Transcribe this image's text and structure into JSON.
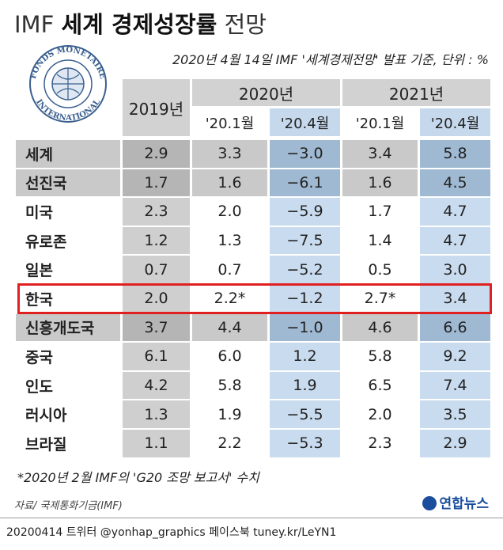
{
  "header": {
    "title_parts": [
      "IMF",
      "세계 경제성장률",
      "전망"
    ],
    "subtitle": "2020년 4월 14일 IMF '세계경제전망' 발표 기준, 단위 : %"
  },
  "logo": {
    "top_text": "FONDS MONETAIRE",
    "bottom_text": "INTERNATIONAL"
  },
  "table": {
    "years": [
      "2019년",
      "2020년",
      "2021년"
    ],
    "subheaders": [
      "'20.1월",
      "'20.4월",
      "'20.1월",
      "'20.4월"
    ],
    "rows": [
      [
        "세계",
        "2.9",
        "3.3",
        "−3.0",
        "3.4",
        "5.8"
      ],
      [
        "선진국",
        "1.7",
        "1.6",
        "−6.1",
        "1.6",
        "4.5"
      ],
      [
        "미국",
        "2.3",
        "2.0",
        "−5.9",
        "1.7",
        "4.7"
      ],
      [
        "유로존",
        "1.2",
        "1.3",
        "−7.5",
        "1.4",
        "4.7"
      ],
      [
        "일본",
        "0.7",
        "0.7",
        "−5.2",
        "0.5",
        "3.0"
      ],
      [
        "한국",
        "2.0",
        "2.2*",
        "−1.2",
        "2.7*",
        "3.4"
      ],
      [
        "신흥개도국",
        "3.7",
        "4.4",
        "−1.0",
        "4.6",
        "6.6"
      ],
      [
        "중국",
        "6.1",
        "6.0",
        "1.2",
        "5.8",
        "9.2"
      ],
      [
        "인도",
        "4.2",
        "5.8",
        "1.9",
        "6.5",
        "7.4"
      ],
      [
        "러시아",
        "1.3",
        "1.9",
        "−5.5",
        "2.0",
        "3.5"
      ],
      [
        "브라질",
        "1.1",
        "2.2",
        "−5.3",
        "2.3",
        "2.9"
      ]
    ]
  },
  "footnote": "*2020년 2월 IMF의 'G20 조망 보고서' 수치",
  "source": "자료/ 국제통화기금(IMF)",
  "brand": "연합뉴스",
  "credit": "20200414 트위터 @yonhap_graphics 페이스북 tuney.kr/LeYN1"
}
